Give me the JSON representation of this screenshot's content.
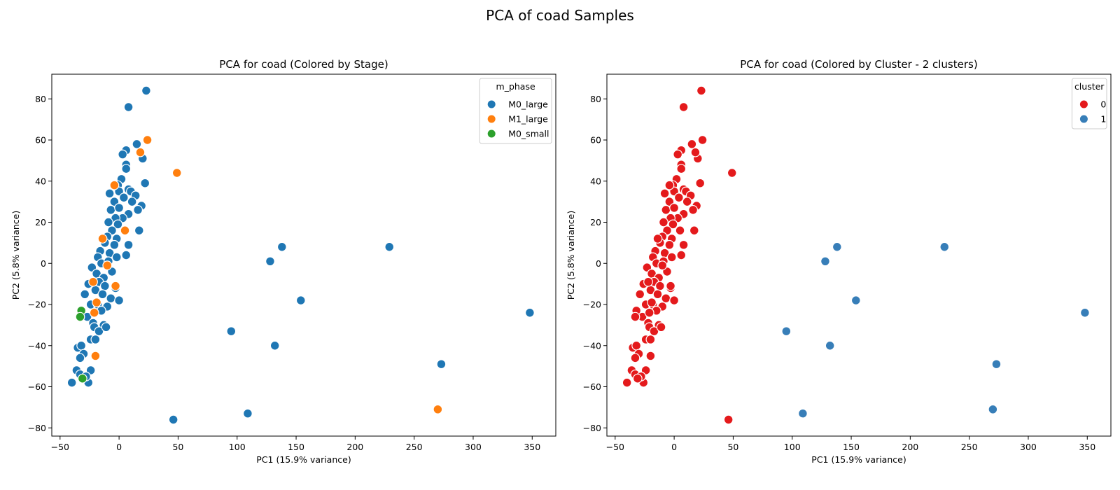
{
  "figure": {
    "suptitle": "PCA of coad Samples"
  },
  "chart_data": [
    {
      "type": "scatter",
      "title": "PCA for coad (Colored by Stage)",
      "xlabel": "PC1 (15.9% variance)",
      "ylabel": "PC2 (5.8% variance)",
      "xlim": [
        -57,
        370
      ],
      "ylim": [
        -84,
        92
      ],
      "xticks": [
        -50,
        0,
        50,
        100,
        150,
        200,
        250,
        300,
        350
      ],
      "yticks": [
        -80,
        -60,
        -40,
        -20,
        0,
        20,
        40,
        60,
        80
      ],
      "grid": false,
      "legend": {
        "title": "m_phase",
        "placement": "top-right"
      },
      "series": [
        {
          "name": "M0_large",
          "color": "#1f77b4",
          "points": [
            [
              23,
              84
            ],
            [
              8,
              76
            ],
            [
              6,
              55
            ],
            [
              3,
              53
            ],
            [
              15,
              58
            ],
            [
              20,
              51
            ],
            [
              6,
              48
            ],
            [
              6,
              46
            ],
            [
              22,
              39
            ],
            [
              2,
              41
            ],
            [
              -1,
              38
            ],
            [
              -8,
              34
            ],
            [
              0,
              35
            ],
            [
              8,
              36
            ],
            [
              10,
              35
            ],
            [
              14,
              33
            ],
            [
              4,
              32
            ],
            [
              -4,
              30
            ],
            [
              11,
              30
            ],
            [
              19,
              28
            ],
            [
              16,
              26
            ],
            [
              8,
              24
            ],
            [
              -7,
              26
            ],
            [
              0,
              27
            ],
            [
              3,
              22
            ],
            [
              -3,
              22
            ],
            [
              17,
              16
            ],
            [
              -9,
              20
            ],
            [
              -1,
              19
            ],
            [
              -6,
              16
            ],
            [
              -10,
              13
            ],
            [
              -2,
              12
            ],
            [
              8,
              9
            ],
            [
              -4,
              9
            ],
            [
              -12,
              10
            ],
            [
              6,
              4
            ],
            [
              -8,
              5
            ],
            [
              -16,
              6
            ],
            [
              -18,
              3
            ],
            [
              -2,
              3
            ],
            [
              -15,
              0
            ],
            [
              -23,
              -2
            ],
            [
              -9,
              1
            ],
            [
              -19,
              -5
            ],
            [
              -13,
              -7
            ],
            [
              -6,
              -4
            ],
            [
              -17,
              -9
            ],
            [
              -26,
              -10
            ],
            [
              -12,
              -11
            ],
            [
              -3,
              -12
            ],
            [
              -20,
              -13
            ],
            [
              -29,
              -15
            ],
            [
              -14,
              -15
            ],
            [
              -7,
              -17
            ],
            [
              0,
              -18
            ],
            [
              -24,
              -20
            ],
            [
              -18,
              -20
            ],
            [
              -10,
              -21
            ],
            [
              -15,
              -23
            ],
            [
              -27,
              -26
            ],
            [
              -22,
              -29
            ],
            [
              -21,
              -31
            ],
            [
              -13,
              -30
            ],
            [
              -17,
              -33
            ],
            [
              -11,
              -31
            ],
            [
              -24,
              -37
            ],
            [
              -20,
              -37
            ],
            [
              -35,
              -41
            ],
            [
              -32,
              -40
            ],
            [
              -30,
              -44
            ],
            [
              -33,
              -46
            ],
            [
              -36,
              -52
            ],
            [
              -24,
              -52
            ],
            [
              -33,
              -54
            ],
            [
              -26,
              -58
            ],
            [
              -40,
              -58
            ],
            [
              -28,
              -55
            ],
            [
              128,
              1
            ],
            [
              138,
              8
            ],
            [
              229,
              8
            ],
            [
              154,
              -18
            ],
            [
              95,
              -33
            ],
            [
              348,
              -24
            ],
            [
              132,
              -40
            ],
            [
              273,
              -49
            ],
            [
              46,
              -76
            ],
            [
              109,
              -73
            ]
          ]
        },
        {
          "name": "M1_large",
          "color": "#ff7f0e",
          "points": [
            [
              24,
              60
            ],
            [
              18,
              54
            ],
            [
              49,
              44
            ],
            [
              -4,
              38
            ],
            [
              5,
              16
            ],
            [
              -14,
              12
            ],
            [
              -10,
              -1
            ],
            [
              -22,
              -9
            ],
            [
              -3,
              -11
            ],
            [
              -19,
              -19
            ],
            [
              -21,
              -24
            ],
            [
              -20,
              -45
            ],
            [
              270,
              -71
            ]
          ]
        },
        {
          "name": "M0_small",
          "color": "#2ca02c",
          "points": [
            [
              -32,
              -23
            ],
            [
              -33,
              -26
            ],
            [
              -31,
              -56
            ]
          ]
        }
      ]
    },
    {
      "type": "scatter",
      "title": "PCA for coad (Colored by Cluster - 2 clusters)",
      "xlabel": "PC1 (15.9% variance)",
      "ylabel": "PC2 (5.8% variance)",
      "xlim": [
        -57,
        370
      ],
      "ylim": [
        -84,
        92
      ],
      "xticks": [
        -50,
        0,
        50,
        100,
        150,
        200,
        250,
        300,
        350
      ],
      "yticks": [
        -80,
        -60,
        -40,
        -20,
        0,
        20,
        40,
        60,
        80
      ],
      "grid": false,
      "legend": {
        "title": "cluster",
        "placement": "top-right"
      },
      "series": [
        {
          "name": "0",
          "color": "#e41a1c",
          "points": [
            [
              23,
              84
            ],
            [
              8,
              76
            ],
            [
              6,
              55
            ],
            [
              3,
              53
            ],
            [
              15,
              58
            ],
            [
              20,
              51
            ],
            [
              6,
              48
            ],
            [
              6,
              46
            ],
            [
              22,
              39
            ],
            [
              2,
              41
            ],
            [
              -1,
              38
            ],
            [
              -8,
              34
            ],
            [
              0,
              35
            ],
            [
              8,
              36
            ],
            [
              10,
              35
            ],
            [
              14,
              33
            ],
            [
              4,
              32
            ],
            [
              -4,
              30
            ],
            [
              11,
              30
            ],
            [
              19,
              28
            ],
            [
              16,
              26
            ],
            [
              8,
              24
            ],
            [
              -7,
              26
            ],
            [
              0,
              27
            ],
            [
              3,
              22
            ],
            [
              -3,
              22
            ],
            [
              17,
              16
            ],
            [
              -9,
              20
            ],
            [
              -1,
              19
            ],
            [
              -6,
              16
            ],
            [
              -10,
              13
            ],
            [
              -2,
              12
            ],
            [
              8,
              9
            ],
            [
              -4,
              9
            ],
            [
              -12,
              10
            ],
            [
              6,
              4
            ],
            [
              -8,
              5
            ],
            [
              -16,
              6
            ],
            [
              -18,
              3
            ],
            [
              -2,
              3
            ],
            [
              -15,
              0
            ],
            [
              -23,
              -2
            ],
            [
              -9,
              1
            ],
            [
              -19,
              -5
            ],
            [
              -13,
              -7
            ],
            [
              -6,
              -4
            ],
            [
              -17,
              -9
            ],
            [
              -26,
              -10
            ],
            [
              -12,
              -11
            ],
            [
              -3,
              -12
            ],
            [
              -20,
              -13
            ],
            [
              -29,
              -15
            ],
            [
              -14,
              -15
            ],
            [
              -7,
              -17
            ],
            [
              0,
              -18
            ],
            [
              -24,
              -20
            ],
            [
              -18,
              -20
            ],
            [
              -10,
              -21
            ],
            [
              -15,
              -23
            ],
            [
              -27,
              -26
            ],
            [
              -22,
              -29
            ],
            [
              -21,
              -31
            ],
            [
              -13,
              -30
            ],
            [
              -17,
              -33
            ],
            [
              -11,
              -31
            ],
            [
              -24,
              -37
            ],
            [
              -20,
              -37
            ],
            [
              -35,
              -41
            ],
            [
              -32,
              -40
            ],
            [
              -30,
              -44
            ],
            [
              -33,
              -46
            ],
            [
              -36,
              -52
            ],
            [
              -24,
              -52
            ],
            [
              -33,
              -54
            ],
            [
              -26,
              -58
            ],
            [
              -40,
              -58
            ],
            [
              -28,
              -55
            ],
            [
              24,
              60
            ],
            [
              18,
              54
            ],
            [
              49,
              44
            ],
            [
              -4,
              38
            ],
            [
              5,
              16
            ],
            [
              -14,
              12
            ],
            [
              -10,
              -1
            ],
            [
              -22,
              -9
            ],
            [
              -3,
              -11
            ],
            [
              -19,
              -19
            ],
            [
              -21,
              -24
            ],
            [
              -20,
              -45
            ],
            [
              -32,
              -23
            ],
            [
              -33,
              -26
            ],
            [
              -31,
              -56
            ],
            [
              46,
              -76
            ]
          ]
        },
        {
          "name": "1",
          "color": "#377eb8",
          "points": [
            [
              128,
              1
            ],
            [
              138,
              8
            ],
            [
              229,
              8
            ],
            [
              154,
              -18
            ],
            [
              95,
              -33
            ],
            [
              348,
              -24
            ],
            [
              132,
              -40
            ],
            [
              273,
              -49
            ],
            [
              270,
              -71
            ],
            [
              109,
              -73
            ]
          ]
        }
      ]
    }
  ]
}
